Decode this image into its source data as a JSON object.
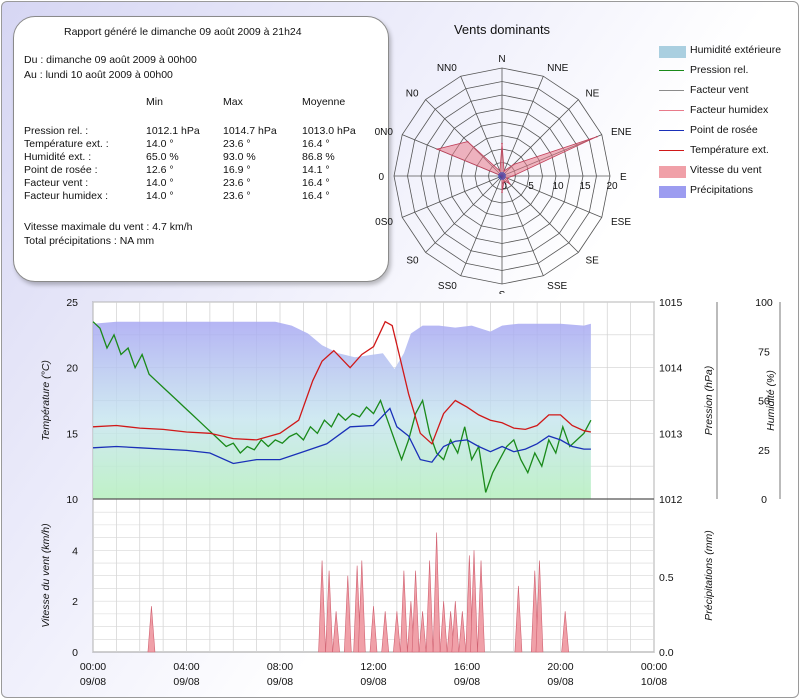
{
  "report": {
    "header": "Rapport généré le dimanche 09 août 2009 à 21h24",
    "from": "Du : dimanche 09 août 2009 à 00h00",
    "to": "Au : lundi 10 août 2009 à 00h00",
    "col_min": "Min",
    "col_max": "Max",
    "col_avg": "Moyenne",
    "rows": [
      {
        "label": "Pression rel. :",
        "min": "1012.1 hPa",
        "max": "1014.7 hPa",
        "avg": "1013.0 hPa"
      },
      {
        "label": "Température ext. :",
        "min": "14.0 °",
        "max": "23.6 °",
        "avg": "16.4 °"
      },
      {
        "label": "Humidité ext. :",
        "min": "65.0 %",
        "max": "93.0 %",
        "avg": "86.8 %"
      },
      {
        "label": "Point de rosée :",
        "min": "12.6 °",
        "max": "16.9 °",
        "avg": "14.1 °"
      },
      {
        "label": "Facteur vent :",
        "min": "14.0 °",
        "max": "23.6 °",
        "avg": "16.4 °"
      },
      {
        "label": "Facteur humidex :",
        "min": "14.0 °",
        "max": "23.6 °",
        "avg": "16.4 °"
      }
    ],
    "max_wind": "Vitesse maximale du vent : 4.7 km/h",
    "total_rain": "Total précipitations : NA mm"
  },
  "legend": [
    {
      "label": "Humidité extérieure",
      "kind": "area",
      "color": "#aacfe0"
    },
    {
      "label": "Pression rel.",
      "kind": "line",
      "color": "#1a8a1a"
    },
    {
      "label": "Facteur vent",
      "kind": "line",
      "color": "#8c8c8c"
    },
    {
      "label": "Facteur humidex",
      "kind": "line",
      "color": "#e87a8a"
    },
    {
      "label": "Point de rosée",
      "kind": "line",
      "color": "#1a30b8"
    },
    {
      "label": "Température ext.",
      "kind": "line",
      "color": "#d01818"
    },
    {
      "label": "Vitesse du vent",
      "kind": "area",
      "color": "#f0a0a8"
    },
    {
      "label": "Précipitations",
      "kind": "area",
      "color": "#9c9cf0"
    }
  ],
  "chart_data": [
    {
      "type": "radar",
      "title": "Vents dominants",
      "directions": [
        "N",
        "NNE",
        "NE",
        "ENE",
        "E",
        "ESE",
        "SE",
        "SSE",
        "S",
        "SS0",
        "S0",
        "0S0",
        "0",
        "0N0",
        "N0",
        "NN0"
      ],
      "radial_ticks": [
        0,
        5,
        10,
        15,
        20
      ],
      "rmax": 20,
      "series": [
        {
          "name": "Vitesse du vent",
          "color": "#e87a8a",
          "values": [
            6,
            1,
            3,
            19,
            2,
            1,
            2,
            1,
            3,
            0,
            0,
            0,
            0,
            13,
            9,
            1
          ]
        }
      ]
    },
    {
      "type": "line",
      "y_left_label": "Température (°C)",
      "y_left_ticks": [
        10,
        15,
        20,
        25
      ],
      "y_left_range": [
        10,
        25
      ],
      "y_right1_label": "Pression (hPa)",
      "y_right1_ticks": [
        1012,
        1013,
        1014,
        1015
      ],
      "y_right1_range": [
        1012,
        1015
      ],
      "y_right2_label": "Humidité (%)",
      "y_right2_ticks": [
        0,
        25,
        50,
        75,
        100
      ],
      "y_right2_range": [
        0,
        100
      ],
      "x_range_hours": [
        0,
        24
      ],
      "series": [
        {
          "name": "Humidité extérieure",
          "axis": "humidity",
          "color": "#9c9cf0",
          "x": [
            0,
            1,
            2,
            3,
            4,
            5,
            6,
            7,
            7.8,
            8.5,
            9.2,
            9.8,
            10.5,
            11.2,
            11.8,
            12.4,
            12.9,
            13.3,
            13.6,
            14.1,
            14.8,
            15.5,
            16.2,
            17,
            17.5,
            18.2,
            19,
            20,
            21,
            21.3
          ],
          "y": [
            89,
            90,
            90,
            90,
            90,
            90,
            90,
            90,
            90,
            88,
            84,
            78,
            74,
            72,
            73,
            74,
            66,
            74,
            84,
            88,
            88,
            87,
            88,
            85,
            88,
            89,
            89,
            89,
            88,
            89
          ]
        },
        {
          "name": "Pression rel.",
          "axis": "pressure",
          "color": "#1a8a1a",
          "x": [
            0,
            0.3,
            0.6,
            0.9,
            1.2,
            1.5,
            1.8,
            2.1,
            2.4,
            2.7,
            3,
            3.3,
            3.6,
            3.9,
            4.2,
            4.5,
            4.8,
            5.1,
            5.4,
            5.7,
            6,
            6.3,
            6.6,
            6.9,
            7.2,
            7.5,
            7.8,
            8.1,
            8.4,
            8.7,
            9,
            9.3,
            9.6,
            9.9,
            10.2,
            10.5,
            10.8,
            11.1,
            11.4,
            11.7,
            12,
            12.3,
            12.6,
            12.9,
            13.2,
            13.5,
            13.8,
            14.1,
            14.4,
            14.7,
            15,
            15.3,
            15.6,
            15.9,
            16.2,
            16.5,
            16.8,
            17.1,
            17.4,
            17.7,
            18,
            18.3,
            18.6,
            18.9,
            19.2,
            19.5,
            19.8,
            20.1,
            20.4,
            20.7,
            21,
            21.3
          ],
          "y": [
            1014.7,
            1014.6,
            1014.3,
            1014.5,
            1014.2,
            1014.3,
            1014.0,
            1014.2,
            1013.9,
            1013.8,
            1013.7,
            1013.6,
            1013.5,
            1013.4,
            1013.3,
            1013.2,
            1013.1,
            1013.0,
            1012.9,
            1012.8,
            1012.85,
            1012.7,
            1012.8,
            1012.75,
            1012.9,
            1012.8,
            1012.9,
            1012.85,
            1012.95,
            1013.0,
            1012.9,
            1013.1,
            1013.0,
            1013.2,
            1013.1,
            1013.3,
            1013.2,
            1013.3,
            1013.25,
            1013.4,
            1013.3,
            1013.5,
            1013.2,
            1012.9,
            1012.6,
            1012.9,
            1013.3,
            1013.5,
            1013.0,
            1012.7,
            1012.6,
            1012.9,
            1012.7,
            1013.1,
            1012.6,
            1012.8,
            1012.1,
            1012.4,
            1012.6,
            1012.8,
            1012.9,
            1012.6,
            1012.4,
            1012.7,
            1012.5,
            1012.9,
            1012.7,
            1013.1,
            1012.8,
            1012.9,
            1013.0,
            1013.2
          ]
        },
        {
          "name": "Point de rosée",
          "axis": "temperature",
          "color": "#1a30b8",
          "x": [
            0,
            1,
            2,
            3,
            4,
            5,
            6,
            7,
            8,
            9,
            10,
            11,
            12,
            12.7,
            13,
            13.5,
            14,
            14.5,
            15,
            15.5,
            16,
            16.5,
            17,
            17.5,
            18,
            18.5,
            19,
            19.5,
            20,
            20.5,
            21,
            21.3
          ],
          "y": [
            13.9,
            14.0,
            13.9,
            13.8,
            13.7,
            13.5,
            12.7,
            13.0,
            13.0,
            13.6,
            14.2,
            15.5,
            15.6,
            16.9,
            15.5,
            14.8,
            13.0,
            12.8,
            14.0,
            14.4,
            14.5,
            14.0,
            13.6,
            14.0,
            13.6,
            13.8,
            14.2,
            14.8,
            14.5,
            14.0,
            13.8,
            13.8
          ]
        },
        {
          "name": "Température ext.",
          "axis": "temperature",
          "color": "#d01818",
          "x": [
            0,
            1,
            2,
            3,
            4,
            5,
            6,
            7,
            8,
            8.8,
            9.4,
            9.8,
            10.3,
            11,
            11.5,
            12,
            12.5,
            12.8,
            13.1,
            13.5,
            14,
            14.5,
            15,
            15.5,
            16,
            16.5,
            17,
            17.5,
            18,
            18.5,
            19,
            19.5,
            20,
            20.5,
            21,
            21.3
          ],
          "y": [
            15.5,
            15.6,
            15.4,
            15.3,
            15.1,
            15.0,
            14.6,
            14.5,
            15.0,
            16.0,
            19.0,
            20.5,
            21.3,
            20.0,
            21.0,
            21.6,
            23.5,
            23.2,
            21.0,
            18.0,
            15.0,
            14.2,
            16.5,
            17.5,
            17.0,
            16.4,
            16.0,
            15.8,
            15.4,
            15.3,
            15.6,
            16.4,
            16.4,
            15.6,
            15.2,
            15.1
          ]
        }
      ]
    },
    {
      "type": "area",
      "y_left_label": "Vitesse du vent (km/h)",
      "y_left_ticks": [
        0,
        2,
        4
      ],
      "y_left_range": [
        0,
        5.9
      ],
      "y_right_label": "Précipitations (mm)",
      "y_right_ticks": [
        "0.0",
        "0.5"
      ],
      "x_ticks_time": [
        "00:00",
        "04:00",
        "08:00",
        "12:00",
        "16:00",
        "20:00",
        "00:00"
      ],
      "x_ticks_date": [
        "09/08",
        "09/08",
        "09/08",
        "09/08",
        "09/08",
        "09/08",
        "10/08"
      ],
      "series": [
        {
          "name": "Vitesse du vent",
          "color": "#f0a0a8",
          "spikes_hours": [
            2.5,
            9.8,
            10.1,
            10.4,
            10.9,
            11.3,
            11.5,
            12.0,
            12.5,
            13.0,
            13.3,
            13.6,
            13.8,
            14.1,
            14.4,
            14.7,
            15.0,
            15.3,
            15.5,
            15.8,
            16.1,
            16.3,
            16.6,
            18.2,
            18.9,
            19.1,
            20.2
          ],
          "spikes_kmh": [
            1.8,
            3.6,
            3.2,
            1.6,
            3.0,
            3.4,
            3.6,
            1.8,
            1.6,
            1.6,
            3.2,
            2.0,
            3.2,
            1.6,
            3.6,
            4.7,
            2.0,
            1.6,
            2.0,
            1.6,
            3.8,
            4.0,
            3.6,
            2.6,
            3.2,
            3.6,
            1.6
          ]
        }
      ]
    }
  ],
  "plot_area_text": {
    "wind_pressure_secondary": ""
  }
}
